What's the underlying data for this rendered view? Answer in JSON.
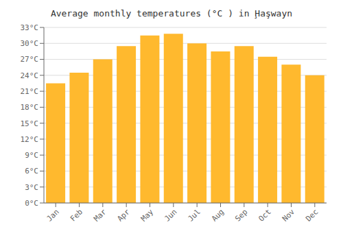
{
  "chart_data": {
    "type": "bar",
    "title": "Average monthly temperatures (°C ) in Ḩaşwayn",
    "categories": [
      "Jan",
      "Feb",
      "Mar",
      "Apr",
      "May",
      "Jun",
      "Jul",
      "Aug",
      "Sep",
      "Oct",
      "Nov",
      "Dec"
    ],
    "values": [
      22.5,
      24.5,
      27.0,
      29.5,
      31.5,
      31.8,
      30.0,
      28.5,
      29.5,
      27.5,
      26.0,
      24.0
    ],
    "color": "#FFB92E",
    "ylim": [
      0,
      33
    ],
    "yticks": [
      {
        "value": 0,
        "label": "0°C"
      },
      {
        "value": 3,
        "label": "3°C"
      },
      {
        "value": 6,
        "label": "6°C"
      },
      {
        "value": 9,
        "label": "9°C"
      },
      {
        "value": 12,
        "label": "12°C"
      },
      {
        "value": 15,
        "label": "15°C"
      },
      {
        "value": 18,
        "label": "18°C"
      },
      {
        "value": 21,
        "label": "21°C"
      },
      {
        "value": 24,
        "label": "24°C"
      },
      {
        "value": 27,
        "label": "27°C"
      },
      {
        "value": 30,
        "label": "30°C"
      },
      {
        "value": 33,
        "label": "33°C"
      }
    ],
    "grid": true
  }
}
